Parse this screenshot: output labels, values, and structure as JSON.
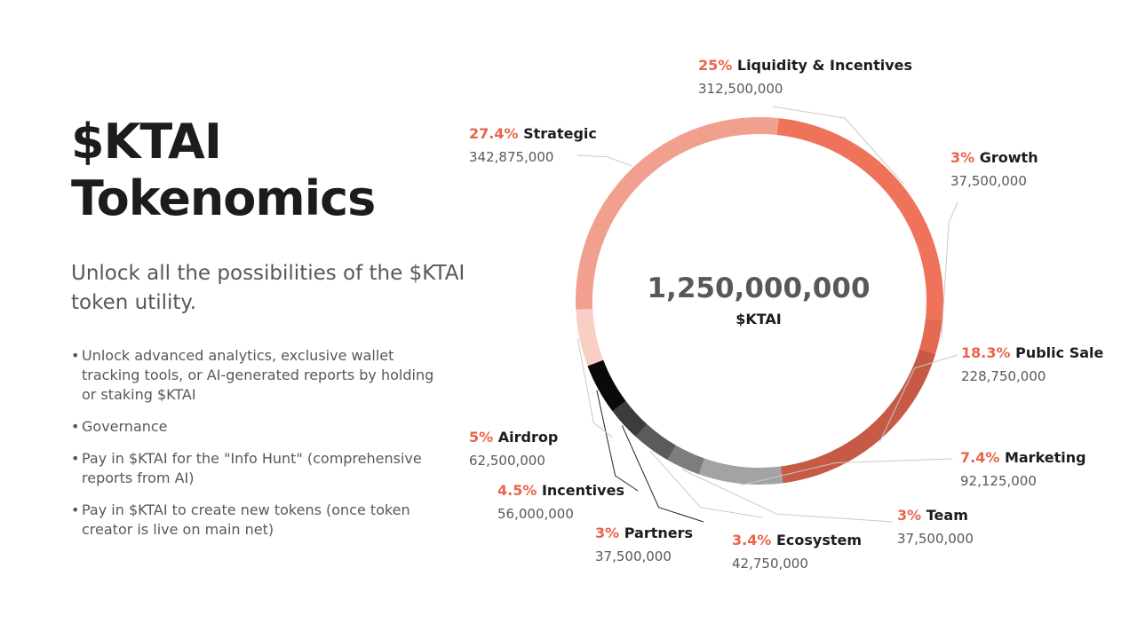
{
  "header": {
    "title_line1": "$KTAI",
    "title_line2": "Tokenomics",
    "subtitle": "Unlock all the possibilities of the $KTAI token utility."
  },
  "bullets": [
    "Unlock advanced analytics, exclusive wallet tracking tools, or AI-generated reports by holding or staking $KTAI",
    "Governance",
    "Pay in $KTAI for the \"Info Hunt\" (comprehensive reports from AI)",
    "Pay in $KTAI to create new tokens (once token creator is live on main net)"
  ],
  "chart_data": {
    "type": "pie",
    "style": "donut",
    "center_total": "1,250,000,000",
    "center_unit": "$KTAI",
    "slices": [
      {
        "name": "Liquidity & Incentives",
        "percent_label": "25%",
        "value": 312500000,
        "amount_label": "312,500,000",
        "color": "#ee735a"
      },
      {
        "name": "Growth",
        "percent_label": "3%",
        "value": 37500000,
        "amount_label": "37,500,000",
        "color": "#e16a51"
      },
      {
        "name": "Public Sale",
        "percent_label": "18.3%",
        "value": 228750000,
        "amount_label": "228,750,000",
        "color": "#c65a44"
      },
      {
        "name": "Marketing",
        "percent_label": "7.4%",
        "value": 92125000,
        "amount_label": "92,125,000",
        "color": "#a3a3a3"
      },
      {
        "name": "Team",
        "percent_label": "3%",
        "value": 37500000,
        "amount_label": "37,500,000",
        "color": "#7d7d7d"
      },
      {
        "name": "Ecosystem",
        "percent_label": "3.4%",
        "value": 42750000,
        "amount_label": "42,750,000",
        "color": "#5b5b5b"
      },
      {
        "name": "Partners",
        "percent_label": "3%",
        "value": 37500000,
        "amount_label": "37,500,000",
        "color": "#3c3c3c"
      },
      {
        "name": "Incentives",
        "percent_label": "4.5%",
        "value": 56000000,
        "amount_label": "56,000,000",
        "color": "#0a0a0a"
      },
      {
        "name": "Airdrop",
        "percent_label": "5%",
        "value": 62500000,
        "amount_label": "62,500,000",
        "color": "#f9cfc5"
      },
      {
        "name": "Strategic",
        "percent_label": "27.4%",
        "value": 342875000,
        "amount_label": "342,875,000",
        "color": "#f1a08f"
      }
    ]
  }
}
